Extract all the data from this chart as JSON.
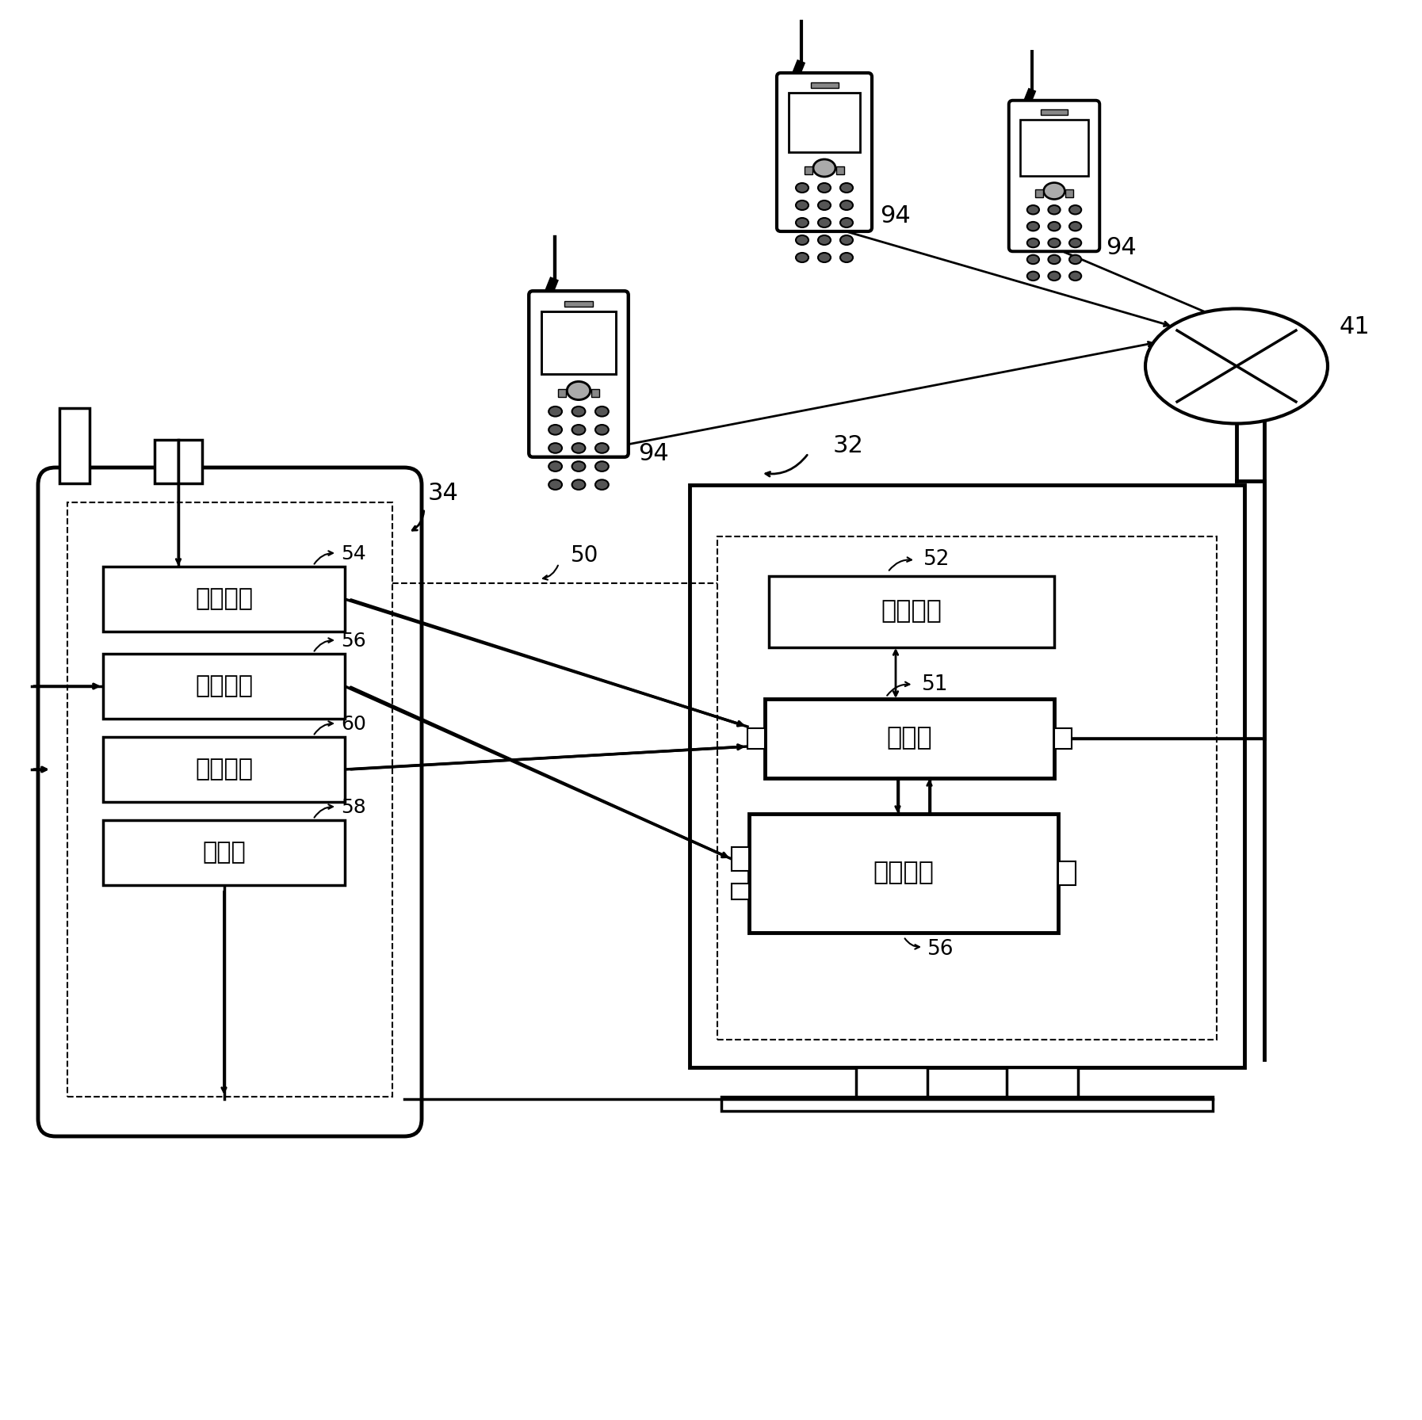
{
  "bg_color": "#ffffff",
  "labels": {
    "54": "定位模块",
    "56_left": "搜寻模块",
    "60": "上传模块",
    "58": "显示器",
    "52": "储存装置",
    "51": "处理器",
    "56_right": "搜寻模块"
  },
  "ref_nums": {
    "34": "34",
    "50": "50",
    "32": "32",
    "52": "52",
    "51": "51",
    "54": "54",
    "56_left": "56",
    "60": "60",
    "58": "58",
    "56_right": "56",
    "94": "94",
    "41": "41"
  }
}
